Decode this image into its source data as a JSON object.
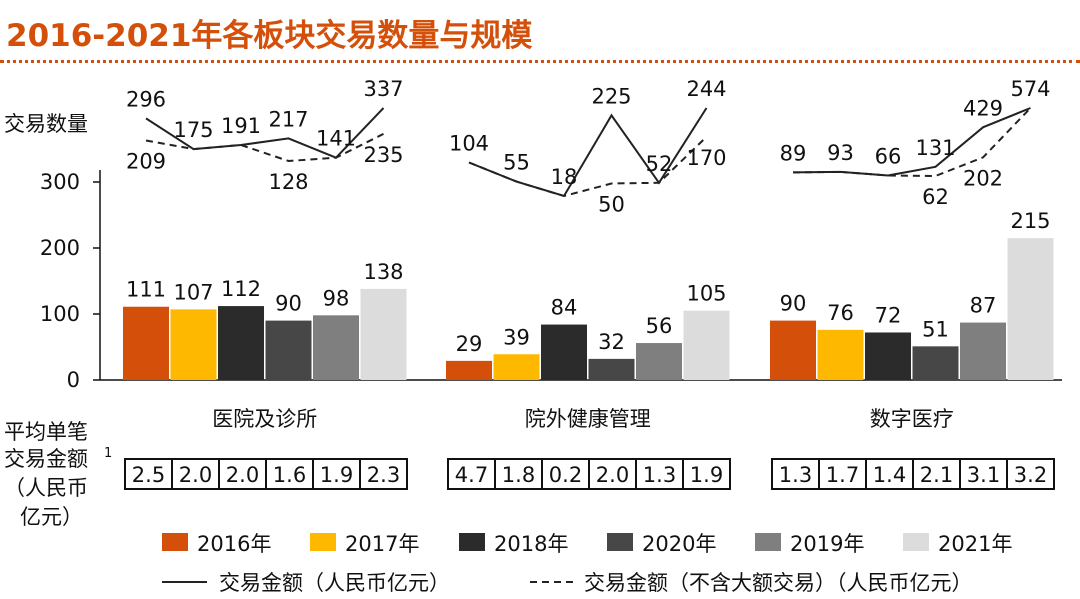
{
  "title": "2016-2021年各板块交易数量与规模",
  "left_labels": {
    "line_axis_label": "交易数量",
    "avg_label_line1": "平均单笔",
    "avg_label_line2": "交易金额",
    "avg_label_sup": "1",
    "avg_label_unit1": "（人民币",
    "avg_label_unit2": "亿元）"
  },
  "chart_data": {
    "type": "bar",
    "categories": [
      "医院及诊所",
      "院外健康管理",
      "数字医疗"
    ],
    "bar_order": [
      "2016年",
      "2017年",
      "2018年",
      "2020年",
      "2019年",
      "2021年"
    ],
    "series": [
      {
        "name": "2016年",
        "color": "#d4500a",
        "values": [
          111,
          29,
          90
        ]
      },
      {
        "name": "2017年",
        "color": "#ffb800",
        "values": [
          107,
          39,
          76
        ]
      },
      {
        "name": "2018年",
        "color": "#2b2b2b",
        "values": [
          112,
          84,
          72
        ]
      },
      {
        "name": "2020年",
        "color": "#474747",
        "values": [
          90,
          32,
          51
        ]
      },
      {
        "name": "2019年",
        "color": "#7f7f7f",
        "values": [
          98,
          56,
          87
        ]
      },
      {
        "name": "2021年",
        "color": "#dcdcdc",
        "values": [
          138,
          105,
          215
        ]
      }
    ],
    "y_ticks": [
      "0",
      "100",
      "200",
      "300"
    ],
    "ylim": [
      0,
      300
    ],
    "deal_amount_lines": [
      {
        "name": "交易金额（人民币亿元）",
        "style": "solid",
        "values": [
          [
            296,
            175,
            191,
            217,
            141,
            337
          ],
          [
            104,
            55,
            18,
            225,
            52,
            244
          ],
          [
            89,
            93,
            66,
            131,
            429,
            574
          ]
        ]
      },
      {
        "name": "交易金额（不含大额交易）（人民币亿元）",
        "style": "dashed",
        "values": [
          [
            209,
            175,
            191,
            128,
            141,
            235
          ],
          [
            104,
            55,
            18,
            50,
            52,
            170
          ],
          [
            89,
            93,
            66,
            62,
            202,
            574
          ]
        ]
      }
    ],
    "average_deal_size": [
      [
        "2.5",
        "2.0",
        "2.0",
        "1.6",
        "1.9",
        "2.3"
      ],
      [
        "4.7",
        "1.8",
        "0.2",
        "2.0",
        "1.3",
        "1.9"
      ],
      [
        "1.3",
        "1.7",
        "1.4",
        "2.1",
        "3.1",
        "3.2"
      ]
    ],
    "legend": {
      "bars": [
        "2016年",
        "2017年",
        "2018年",
        "2020年",
        "2019年",
        "2021年"
      ],
      "solid_line": "交易金额（人民币亿元）",
      "dashed_line": "交易金额（不含大额交易）（人民币亿元）"
    }
  }
}
